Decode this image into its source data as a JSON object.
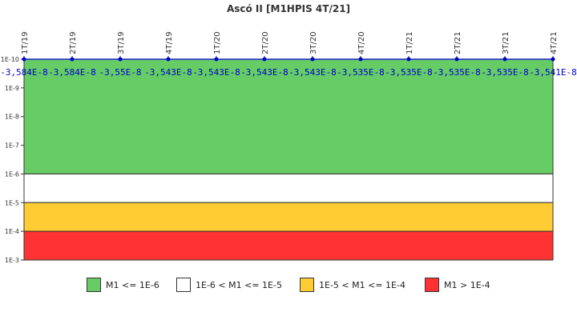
{
  "chart_data": {
    "type": "line",
    "title": "Ascó II [M1HPIS 4T/21]",
    "x": [
      "1T/19",
      "2T/19",
      "3T/19",
      "4T/19",
      "1T/20",
      "2T/20",
      "3T/20",
      "4T/20",
      "1T/21",
      "2T/21",
      "3T/21",
      "4T/21"
    ],
    "series": [
      {
        "values": [
          -3.584e-08,
          -3.584e-08,
          -3.55e-08,
          -3.543e-08,
          -3.543e-08,
          -3.543e-08,
          -3.543e-08,
          -3.535e-08,
          -3.535e-08,
          -3.535e-08,
          -3.535e-08,
          -3.541e-08
        ],
        "labels": [
          "-3,584E-8",
          "-3,584E-8",
          "-3,55E-8",
          "-3,543E-8",
          "-3,543E-8",
          "-3,543E-8",
          "-3,543E-8",
          "-3,535E-8",
          "-3,535E-8",
          "-3,535E-8",
          "-3,535E-8",
          "-3,541E-8"
        ],
        "color": "#0000cc"
      }
    ],
    "y_scale": "log",
    "y_ticks": [
      "1E-10",
      "1E-9",
      "1E-8",
      "1E-7",
      "1E-6",
      "1E-5",
      "1E-4",
      "1E-3"
    ],
    "ylim": [
      "1E-10",
      "1E-3"
    ],
    "bands": [
      {
        "from": "1E-10",
        "to": "1E-6",
        "color": "#66cc66"
      },
      {
        "from": "1E-6",
        "to": "1E-5",
        "color": "#ffffff"
      },
      {
        "from": "1E-5",
        "to": "1E-4",
        "color": "#ffcc33"
      },
      {
        "from": "1E-4",
        "to": "1E-3",
        "color": "#ff3333"
      }
    ],
    "legend": [
      {
        "label": "M1 <= 1E-6",
        "color": "#66cc66"
      },
      {
        "label": "1E-6 < M1 <= 1E-5",
        "color": "#ffffff"
      },
      {
        "label": "1E-5 < M1 <= 1E-4",
        "color": "#ffcc33"
      },
      {
        "label": "M1 > 1E-4",
        "color": "#ff3333"
      }
    ],
    "legend_position": "bottom"
  }
}
